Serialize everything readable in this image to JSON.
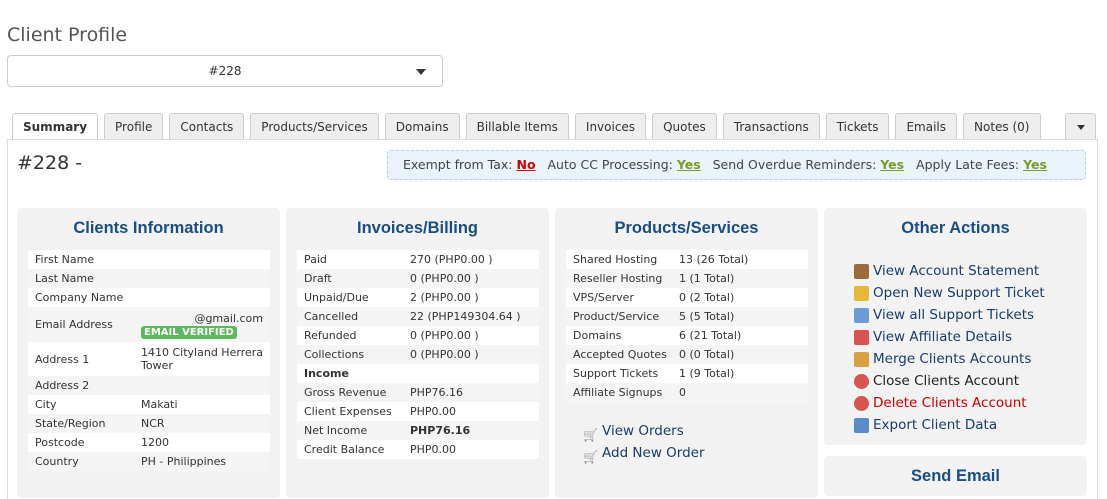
{
  "page_title": "Client Profile",
  "client_select": {
    "value": "#228"
  },
  "tabs": [
    "Summary",
    "Profile",
    "Contacts",
    "Products/Services",
    "Domains",
    "Billable Items",
    "Invoices",
    "Quotes",
    "Transactions",
    "Tickets",
    "Emails",
    "Notes (0)"
  ],
  "client_heading": "#228 -",
  "flags": [
    {
      "label": "Exempt from Tax:",
      "value": "No"
    },
    {
      "label": "Auto CC Processing:",
      "value": "Yes"
    },
    {
      "label": "Send Overdue Reminders:",
      "value": "Yes"
    },
    {
      "label": "Apply Late Fees:",
      "value": "Yes"
    }
  ],
  "clients_info": {
    "title": "Clients Information",
    "rows": [
      {
        "k": "First Name",
        "v": ""
      },
      {
        "k": "Last Name",
        "v": ""
      },
      {
        "k": "Company Name",
        "v": ""
      },
      {
        "k": "Email Address",
        "v": "@gmail.com",
        "badge": "EMAIL VERIFIED"
      },
      {
        "k": "Address 1",
        "v": "1410 Cityland Herrera Tower"
      },
      {
        "k": "Address 2",
        "v": ""
      },
      {
        "k": "City",
        "v": "Makati"
      },
      {
        "k": "State/Region",
        "v": "NCR"
      },
      {
        "k": "Postcode",
        "v": "1200"
      },
      {
        "k": "Country",
        "v": "PH - Philippines"
      }
    ]
  },
  "billing": {
    "title": "Invoices/Billing",
    "rows": [
      {
        "k": "Paid",
        "v": "270 (PHP0.00 )"
      },
      {
        "k": "Draft",
        "v": "0 (PHP0.00 )"
      },
      {
        "k": "Unpaid/Due",
        "v": "2 (PHP0.00 )"
      },
      {
        "k": "Cancelled",
        "v": "22 (PHP149304.64 )"
      },
      {
        "k": "Refunded",
        "v": "0 (PHP0.00 )"
      },
      {
        "k": "Collections",
        "v": "0 (PHP0.00 )"
      },
      {
        "k": "Income",
        "v": ""
      },
      {
        "k": "Gross Revenue",
        "v": "PHP76.16"
      },
      {
        "k": "Client Expenses",
        "v": "PHP0.00"
      },
      {
        "k": "Net Income",
        "v": "PHP76.16"
      },
      {
        "k": "Credit Balance",
        "v": "PHP0.00"
      }
    ]
  },
  "products": {
    "title": "Products/Services",
    "rows": [
      {
        "k": "Shared Hosting",
        "v": "13 (26 Total)"
      },
      {
        "k": "Reseller Hosting",
        "v": "1 (1 Total)"
      },
      {
        "k": "VPS/Server",
        "v": "0 (2 Total)"
      },
      {
        "k": "Product/Service",
        "v": "5 (5 Total)"
      },
      {
        "k": "Domains",
        "v": "6 (21 Total)"
      },
      {
        "k": "Accepted Quotes",
        "v": "0 (0 Total)"
      },
      {
        "k": "Support Tickets",
        "v": "1 (9 Total)"
      },
      {
        "k": "Affiliate Signups",
        "v": "0"
      }
    ],
    "links": [
      {
        "label": "View Orders",
        "icon": "cart-icon"
      },
      {
        "label": "Add New Order",
        "icon": "cart-add-icon"
      }
    ]
  },
  "other_actions": {
    "title": "Other Actions",
    "items": [
      {
        "label": "View Account Statement",
        "icon": "statement-icon",
        "color": "#9c6b3a"
      },
      {
        "label": "Open New Support Ticket",
        "icon": "new-ticket-icon",
        "color": "#e8b83a"
      },
      {
        "label": "View all Support Tickets",
        "icon": "tickets-icon",
        "color": "#6a9ad8"
      },
      {
        "label": "View Affiliate Details",
        "icon": "affiliate-icon",
        "color": "#d9534f"
      },
      {
        "label": "Merge Clients Accounts",
        "icon": "merge-icon",
        "color": "#d9a040"
      },
      {
        "label": "Close Clients Account",
        "icon": "close-account-icon",
        "color": "#d9534f"
      },
      {
        "label": "Delete Clients Account",
        "icon": "delete-account-icon",
        "color": "#d9534f",
        "text_color": "#cc0000"
      },
      {
        "label": "Export Client Data",
        "icon": "export-icon",
        "color": "#5a8ac8"
      }
    ]
  },
  "send_email": {
    "title": "Send Email"
  }
}
